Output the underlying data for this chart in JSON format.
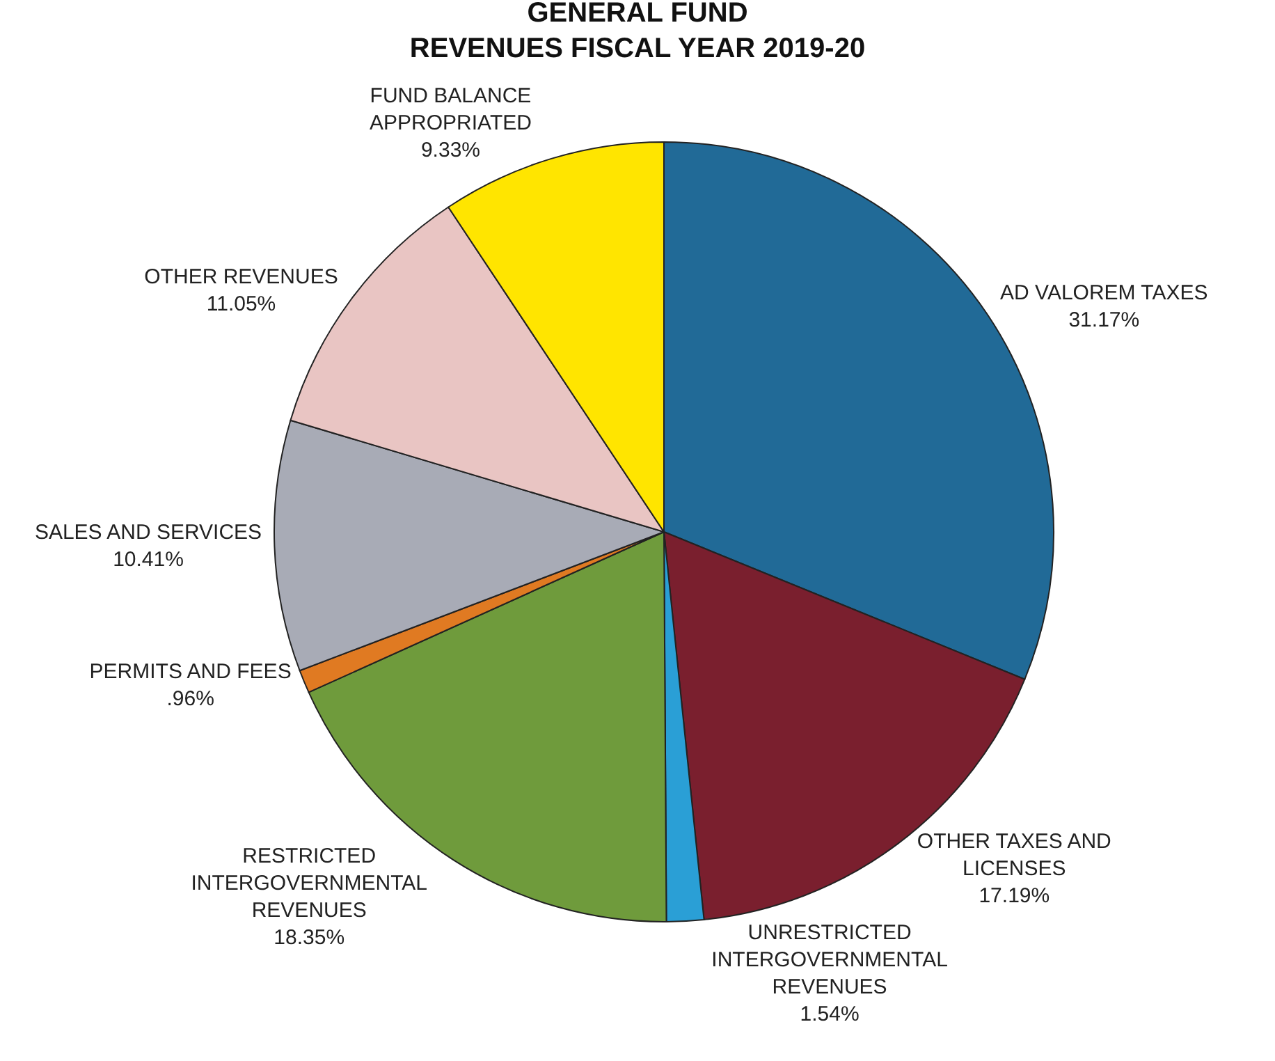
{
  "chart_data": {
    "type": "pie",
    "title": "GENERAL FUND\nREVENUES FISCAL YEAR 2019-20",
    "categories": [
      "AD VALOREM TAXES",
      "OTHER TAXES AND\nLICENSES",
      "UNRESTRICTED\nINTERGOVERNMENTAL\nREVENUES",
      "RESTRICTED\nINTERGOVERNMENTAL\nREVENUES",
      "PERMITS AND FEES",
      "SALES AND SERVICES",
      "OTHER REVENUES",
      "FUND BALANCE\nAPPROPRIATED"
    ],
    "values": [
      31.17,
      17.19,
      1.54,
      18.35,
      0.96,
      10.41,
      11.05,
      9.33
    ],
    "value_labels": [
      "31.17%",
      "17.19%",
      "1.54%",
      "18.35%",
      ".96%",
      "10.41%",
      "11.05%",
      "9.33%"
    ],
    "colors": [
      "#216a97",
      "#7a1f2e",
      "#2a9fd6",
      "#6f9b3c",
      "#e07a22",
      "#a8abb6",
      "#e9c5c3",
      "#ffe500"
    ],
    "legend": false
  }
}
